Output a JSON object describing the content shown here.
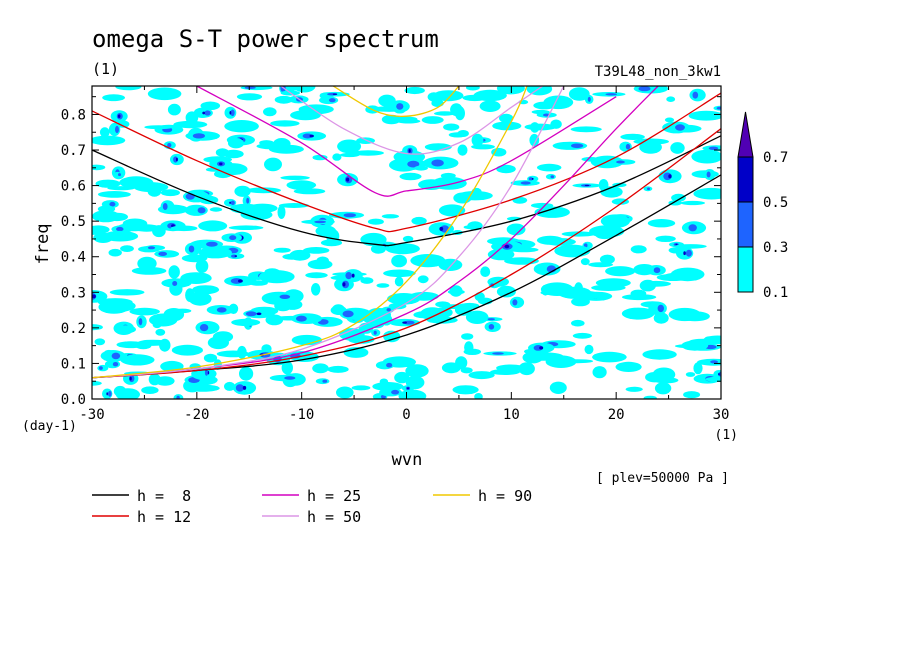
{
  "chart_data": {
    "type": "heatmap",
    "title": "omega S-T power spectrum",
    "units_label": "(1)",
    "experiment": "T39L48_non_3kw1",
    "xlabel": "wvn",
    "ylabel": "freq",
    "x_unit": "(1)",
    "y_unit": "(day-1)",
    "annotation": "[ plev=50000 Pa ]",
    "xlim": [
      -30,
      30
    ],
    "ylim": [
      0,
      0.88
    ],
    "x_ticks": [
      "-30",
      "-20",
      "-10",
      "0",
      "10",
      "20",
      "30"
    ],
    "y_ticks": [
      "0.0",
      "0.1",
      "0.2",
      "0.3",
      "0.4",
      "0.5",
      "0.6",
      "0.7",
      "0.8"
    ],
    "colorbar": {
      "levels": [
        "0.1",
        "0.3",
        "0.5",
        "0.7"
      ],
      "colors": [
        "#00ffff",
        "#1e64ff",
        "#0000c8",
        "#5000b4"
      ]
    },
    "series": [
      {
        "name": "h =  8",
        "color": "#000000",
        "points": [
          [
            -30,
            0.7
          ],
          [
            -20,
            0.57
          ],
          [
            -10,
            0.47
          ],
          [
            -3,
            0.435
          ],
          [
            0,
            0.44
          ],
          [
            10,
            0.5
          ],
          [
            20,
            0.6
          ],
          [
            30,
            0.74
          ]
        ]
      },
      {
        "name": "h =  8",
        "color": "#000000",
        "points": [
          [
            -30,
            0.06
          ],
          [
            -20,
            0.08
          ],
          [
            -10,
            0.11
          ],
          [
            0,
            0.18
          ],
          [
            10,
            0.3
          ],
          [
            20,
            0.46
          ],
          [
            30,
            0.63
          ]
        ]
      },
      {
        "name": "h = 12",
        "color": "#e00000",
        "points": [
          [
            -30,
            0.81
          ],
          [
            -20,
            0.67
          ],
          [
            -10,
            0.55
          ],
          [
            -3,
            0.48
          ],
          [
            0,
            0.48
          ],
          [
            10,
            0.56
          ],
          [
            20,
            0.68
          ],
          [
            30,
            0.86
          ]
        ]
      },
      {
        "name": "h = 12",
        "color": "#e00000",
        "points": [
          [
            -30,
            0.06
          ],
          [
            -20,
            0.08
          ],
          [
            -10,
            0.12
          ],
          [
            0,
            0.2
          ],
          [
            10,
            0.35
          ],
          [
            20,
            0.54
          ],
          [
            30,
            0.76
          ]
        ]
      },
      {
        "name": "h = 25",
        "color": "#d400c0",
        "points": [
          [
            -20,
            0.88
          ],
          [
            -10,
            0.72
          ],
          [
            -3,
            0.58
          ],
          [
            0,
            0.585
          ],
          [
            5,
            0.61
          ],
          [
            10,
            0.67
          ],
          [
            20,
            0.85
          ]
        ]
      },
      {
        "name": "h = 25",
        "color": "#d400c0",
        "points": [
          [
            -30,
            0.06
          ],
          [
            -20,
            0.085
          ],
          [
            -10,
            0.13
          ],
          [
            0,
            0.24
          ],
          [
            5,
            0.33
          ],
          [
            10,
            0.45
          ],
          [
            15,
            0.6
          ],
          [
            20,
            0.76
          ],
          [
            24,
            0.88
          ]
        ]
      },
      {
        "name": "h = 50",
        "color": "#dc96e6",
        "points": [
          [
            -12,
            0.88
          ],
          [
            -6,
            0.76
          ],
          [
            0,
            0.69
          ],
          [
            5,
            0.72
          ],
          [
            10,
            0.82
          ],
          [
            13,
            0.88
          ]
        ]
      },
      {
        "name": "h = 50",
        "color": "#dc96e6",
        "points": [
          [
            -30,
            0.06
          ],
          [
            -20,
            0.085
          ],
          [
            -10,
            0.14
          ],
          [
            0,
            0.27
          ],
          [
            5,
            0.4
          ],
          [
            10,
            0.6
          ],
          [
            15,
            0.88
          ]
        ]
      },
      {
        "name": "h = 90",
        "color": "#f0c800",
        "points": [
          [
            -7,
            0.88
          ],
          [
            -3,
            0.81
          ],
          [
            0,
            0.795
          ],
          [
            3,
            0.82
          ],
          [
            5,
            0.88
          ]
        ]
      },
      {
        "name": "h = 90",
        "color": "#f0c800",
        "points": [
          [
            -30,
            0.06
          ],
          [
            -20,
            0.09
          ],
          [
            -10,
            0.15
          ],
          [
            -5,
            0.21
          ],
          [
            0,
            0.33
          ],
          [
            5,
            0.52
          ],
          [
            10,
            0.78
          ],
          [
            11.5,
            0.88
          ]
        ]
      }
    ],
    "legend": [
      {
        "label": "h =  8",
        "color": "#000000"
      },
      {
        "label": "h = 12",
        "color": "#e00000"
      },
      {
        "label": "h = 25",
        "color": "#d400c0"
      },
      {
        "label": "h = 50",
        "color": "#dc96e6"
      },
      {
        "label": "h = 90",
        "color": "#f0c800"
      }
    ]
  }
}
